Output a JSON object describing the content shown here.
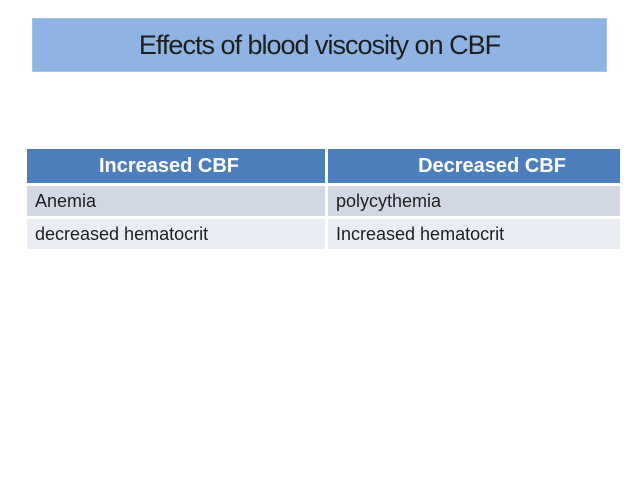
{
  "slide": {
    "title": "Effects of blood viscosity on CBF"
  },
  "table": {
    "headers": [
      "Increased CBF",
      "Decreased CBF"
    ],
    "rows": [
      [
        "Anemia",
        "polycythemia"
      ],
      [
        "decreased hematocrit",
        "Increased hematocrit"
      ]
    ]
  },
  "colors": {
    "background": "#FFFFFF",
    "title_fill": "#8FB3E2",
    "title_border": "#A9C3E9",
    "header_fill": "#4C7EBB",
    "header_text": "#FFFFFF",
    "row_odd_fill": "#D2D7E4",
    "row_even_fill": "#EAECF4",
    "body_text": "#1F1F1F"
  }
}
